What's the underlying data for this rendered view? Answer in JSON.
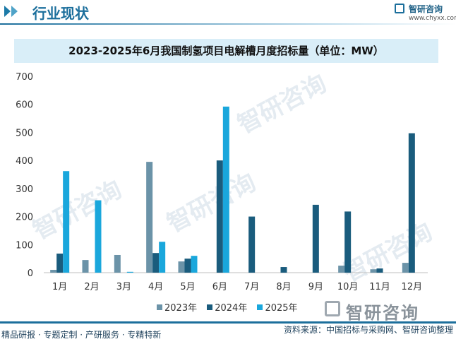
{
  "header": {
    "section_title": "行业现状",
    "brand_name": "智研咨询",
    "brand_url": "www.chyxx.com"
  },
  "chart_data": {
    "type": "bar",
    "title": "2023-2025年6月我国制氢项目电解槽月度招标量（单位：MW）",
    "categories": [
      "1月",
      "2月",
      "3月",
      "4月",
      "5月",
      "6月",
      "7月",
      "8月",
      "9月",
      "10月",
      "11月",
      "12月"
    ],
    "series": [
      {
        "name": "2023年",
        "color": "#6b93a8",
        "values": [
          10,
          45,
          63,
          395,
          40,
          0,
          0,
          0,
          0,
          25,
          12,
          35
        ]
      },
      {
        "name": "2024年",
        "color": "#1a5c7d",
        "values": [
          68,
          0,
          0,
          70,
          50,
          400,
          200,
          20,
          242,
          218,
          15,
          497
        ]
      },
      {
        "name": "2025年",
        "color": "#1aa7dc",
        "values": [
          362,
          258,
          3,
          110,
          60,
          592,
          0,
          0,
          0,
          0,
          0,
          0
        ]
      }
    ],
    "ylim": [
      0,
      700
    ],
    "yticks": [
      0,
      100,
      200,
      300,
      400,
      500,
      600,
      700
    ],
    "xlabel": "",
    "ylabel": "",
    "grid": false,
    "legend": "bottom-center"
  },
  "footer": {
    "left": "精品研报 · 专题定制 · 产研服务 · 专精特新",
    "source": "资料来源：中国招标与采购网、智研咨询整理",
    "brand": "智研咨询"
  }
}
